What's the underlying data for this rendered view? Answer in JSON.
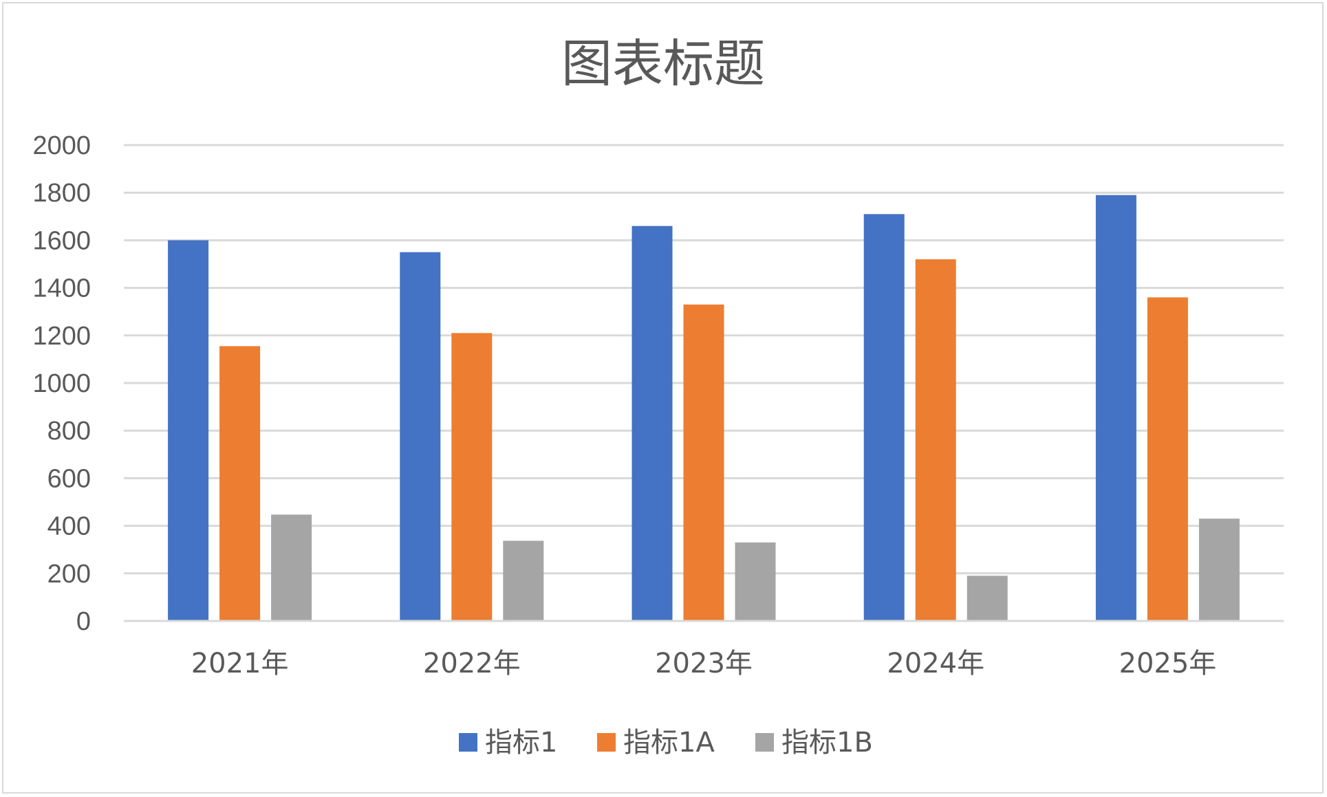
{
  "chart_data": {
    "type": "bar",
    "title": "图表标题",
    "categories": [
      "2021年",
      "2022年",
      "2023年",
      "2024年",
      "2025年"
    ],
    "series": [
      {
        "name": "指标1",
        "color": "#4472C4",
        "values": [
          1600,
          1550,
          1660,
          1710,
          1790
        ]
      },
      {
        "name": "指标1A",
        "color": "#ED7D31",
        "values": [
          1155,
          1210,
          1330,
          1520,
          1360
        ]
      },
      {
        "name": "指标1B",
        "color": "#A5A5A5",
        "values": [
          447,
          337,
          330,
          190,
          430
        ]
      }
    ],
    "ylim": [
      0,
      2000
    ],
    "yticks": [
      "0",
      "200",
      "400",
      "600",
      "800",
      "1000",
      "1200",
      "1400",
      "1600",
      "1800",
      "2000"
    ],
    "grid": true,
    "legend_position": "bottom",
    "colors": {
      "gridline": "#d9d9d9",
      "text": "#595959",
      "frame": "#d9d9d9"
    }
  }
}
